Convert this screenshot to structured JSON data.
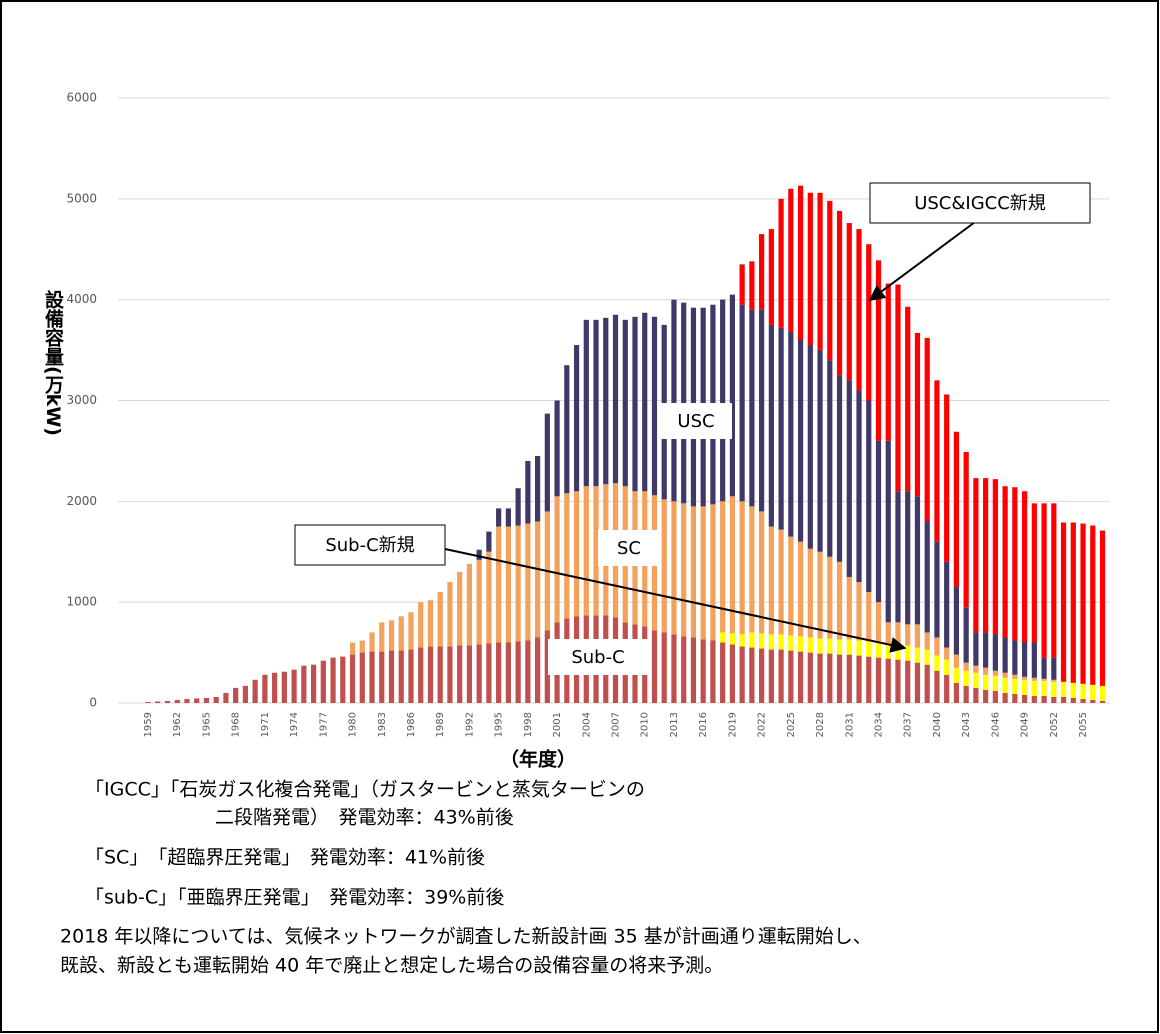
{
  "chart_data": {
    "type": "stacked_bar",
    "y_label": "設備容量(万kW)",
    "x_label": "（年度）",
    "categories": [
      "1959",
      null,
      null,
      "1962",
      null,
      null,
      "1965",
      null,
      null,
      "1968",
      null,
      null,
      "1971",
      null,
      null,
      "1974",
      null,
      null,
      "1977",
      null,
      null,
      "1980",
      null,
      null,
      "1983",
      null,
      null,
      "1986",
      null,
      null,
      "1989",
      null,
      null,
      "1992",
      null,
      null,
      "1995",
      null,
      null,
      "1998",
      null,
      null,
      "2001",
      null,
      null,
      "2004",
      null,
      null,
      "2007",
      null,
      null,
      "2010",
      null,
      null,
      "2013",
      null,
      null,
      "2016",
      null,
      null,
      "2019",
      null,
      null,
      "2022",
      null,
      null,
      "2025",
      null,
      null,
      "2028",
      null,
      null,
      "2031",
      null,
      null,
      "2034",
      null,
      null,
      "2037",
      null,
      null,
      "2040",
      null,
      null,
      "2043",
      null,
      null,
      "2046",
      null,
      null,
      "2049",
      null,
      null,
      "2052",
      null,
      null,
      "2055",
      null,
      null
    ],
    "series": [
      {
        "name": "Sub-C",
        "color": "#c0504d",
        "values": [
          10,
          15,
          20,
          30,
          40,
          45,
          50,
          60,
          100,
          150,
          170,
          230,
          280,
          300,
          310,
          330,
          370,
          380,
          420,
          450,
          460,
          480,
          500,
          510,
          510,
          520,
          520,
          530,
          550,
          560,
          560,
          560,
          570,
          570,
          580,
          590,
          600,
          600,
          610,
          620,
          650,
          720,
          800,
          840,
          860,
          870,
          870,
          870,
          850,
          800,
          780,
          760,
          720,
          700,
          680,
          660,
          650,
          630,
          620,
          600,
          580,
          560,
          550,
          540,
          530,
          530,
          520,
          510,
          500,
          490,
          490,
          480,
          480,
          470,
          460,
          450,
          440,
          430,
          420,
          400,
          380,
          320,
          280,
          200,
          170,
          150,
          130,
          120,
          100,
          90,
          80,
          70,
          70,
          60,
          60,
          50,
          40,
          30,
          20
        ]
      },
      {
        "name": "Sub-C新規",
        "color": "#ffff00",
        "values": [
          0,
          0,
          0,
          0,
          0,
          0,
          0,
          0,
          0,
          0,
          0,
          0,
          0,
          0,
          0,
          0,
          0,
          0,
          0,
          0,
          0,
          0,
          0,
          0,
          0,
          0,
          0,
          0,
          0,
          0,
          0,
          0,
          0,
          0,
          0,
          0,
          0,
          0,
          0,
          0,
          0,
          0,
          0,
          0,
          0,
          0,
          0,
          0,
          0,
          0,
          0,
          0,
          0,
          0,
          0,
          0,
          0,
          0,
          0,
          100,
          110,
          120,
          150,
          150,
          150,
          150,
          150,
          150,
          150,
          150,
          150,
          150,
          150,
          150,
          150,
          150,
          150,
          150,
          150,
          150,
          150,
          150,
          150,
          150,
          150,
          150,
          150,
          150,
          150,
          150,
          150,
          150,
          150,
          150,
          150,
          150,
          150,
          150,
          150
        ]
      },
      {
        "name": "SC",
        "color": "#f4a15c",
        "values": [
          0,
          0,
          0,
          0,
          0,
          0,
          0,
          0,
          0,
          0,
          0,
          0,
          0,
          0,
          0,
          0,
          0,
          0,
          0,
          0,
          0,
          120,
          120,
          190,
          290,
          300,
          340,
          370,
          450,
          460,
          540,
          640,
          730,
          810,
          840,
          910,
          1150,
          1150,
          1150,
          1160,
          1150,
          1180,
          1250,
          1240,
          1240,
          1280,
          1280,
          1300,
          1330,
          1350,
          1320,
          1340,
          1340,
          1320,
          1320,
          1320,
          1300,
          1320,
          1350,
          1300,
          1360,
          1320,
          1250,
          1210,
          1070,
          1040,
          980,
          940,
          880,
          860,
          810,
          770,
          620,
          580,
          490,
          400,
          210,
          220,
          210,
          230,
          170,
          180,
          120,
          130,
          80,
          70,
          70,
          50,
          50,
          40,
          30,
          30,
          20,
          20,
          0,
          0,
          0,
          0,
          0
        ]
      },
      {
        "name": "USC",
        "color": "#403868",
        "values": [
          0,
          0,
          0,
          0,
          0,
          0,
          0,
          0,
          0,
          0,
          0,
          0,
          0,
          0,
          0,
          0,
          0,
          0,
          0,
          0,
          0,
          0,
          0,
          0,
          0,
          0,
          0,
          0,
          0,
          0,
          0,
          0,
          0,
          0,
          100,
          200,
          180,
          180,
          370,
          620,
          650,
          970,
          950,
          1270,
          1450,
          1650,
          1650,
          1650,
          1670,
          1650,
          1730,
          1770,
          1770,
          1730,
          2000,
          1990,
          1970,
          1970,
          1980,
          2000,
          2000,
          1950,
          1950,
          2000,
          2000,
          2000,
          2030,
          2000,
          2020,
          2000,
          1950,
          1850,
          1950,
          1900,
          1900,
          1600,
          1800,
          1300,
          1320,
          1270,
          1100,
          950,
          850,
          670,
          550,
          330,
          350,
          360,
          350,
          340,
          340,
          350,
          210,
          220,
          0,
          0,
          0,
          0,
          0
        ]
      },
      {
        "name": "USC&IGCC新規",
        "color": "#ff0000",
        "values": [
          0,
          0,
          0,
          0,
          0,
          0,
          0,
          0,
          0,
          0,
          0,
          0,
          0,
          0,
          0,
          0,
          0,
          0,
          0,
          0,
          0,
          0,
          0,
          0,
          0,
          0,
          0,
          0,
          0,
          0,
          0,
          0,
          0,
          0,
          0,
          0,
          0,
          0,
          0,
          0,
          0,
          0,
          0,
          0,
          0,
          0,
          0,
          0,
          0,
          0,
          0,
          0,
          0,
          0,
          0,
          0,
          0,
          0,
          0,
          0,
          0,
          400,
          480,
          750,
          950,
          1280,
          1420,
          1530,
          1510,
          1560,
          1580,
          1630,
          1560,
          1600,
          1550,
          1790,
          1560,
          2050,
          1830,
          1620,
          1820,
          1600,
          1660,
          1540,
          1540,
          1530,
          1530,
          1540,
          1500,
          1520,
          1500,
          1380,
          1530,
          1530,
          1580,
          1590,
          1590,
          1580,
          1540
        ]
      }
    ],
    "ylim": [
      0,
      6000
    ],
    "yticks": [
      0,
      1000,
      2000,
      3000,
      4000,
      5000,
      6000
    ],
    "grid": true
  },
  "notes": [
    "「IGCC」「石炭ガス化複合発電」（ガスタービンと蒸気タービンの",
    "二段階発電）　発電効率：43%前後",
    "「SC」　「超臨界圧発電」　発電効率：41%前後",
    "「sub-C」「亜臨界圧発電」　発電効率：39%前後",
    "2018 年以降については、気候ネットワークが調査した新設計画 35 基が計画通り運転開始し、",
    "既設、新設とも運転開始 40 年で廃止と想定した場合の設備容量の将来予測。"
  ]
}
